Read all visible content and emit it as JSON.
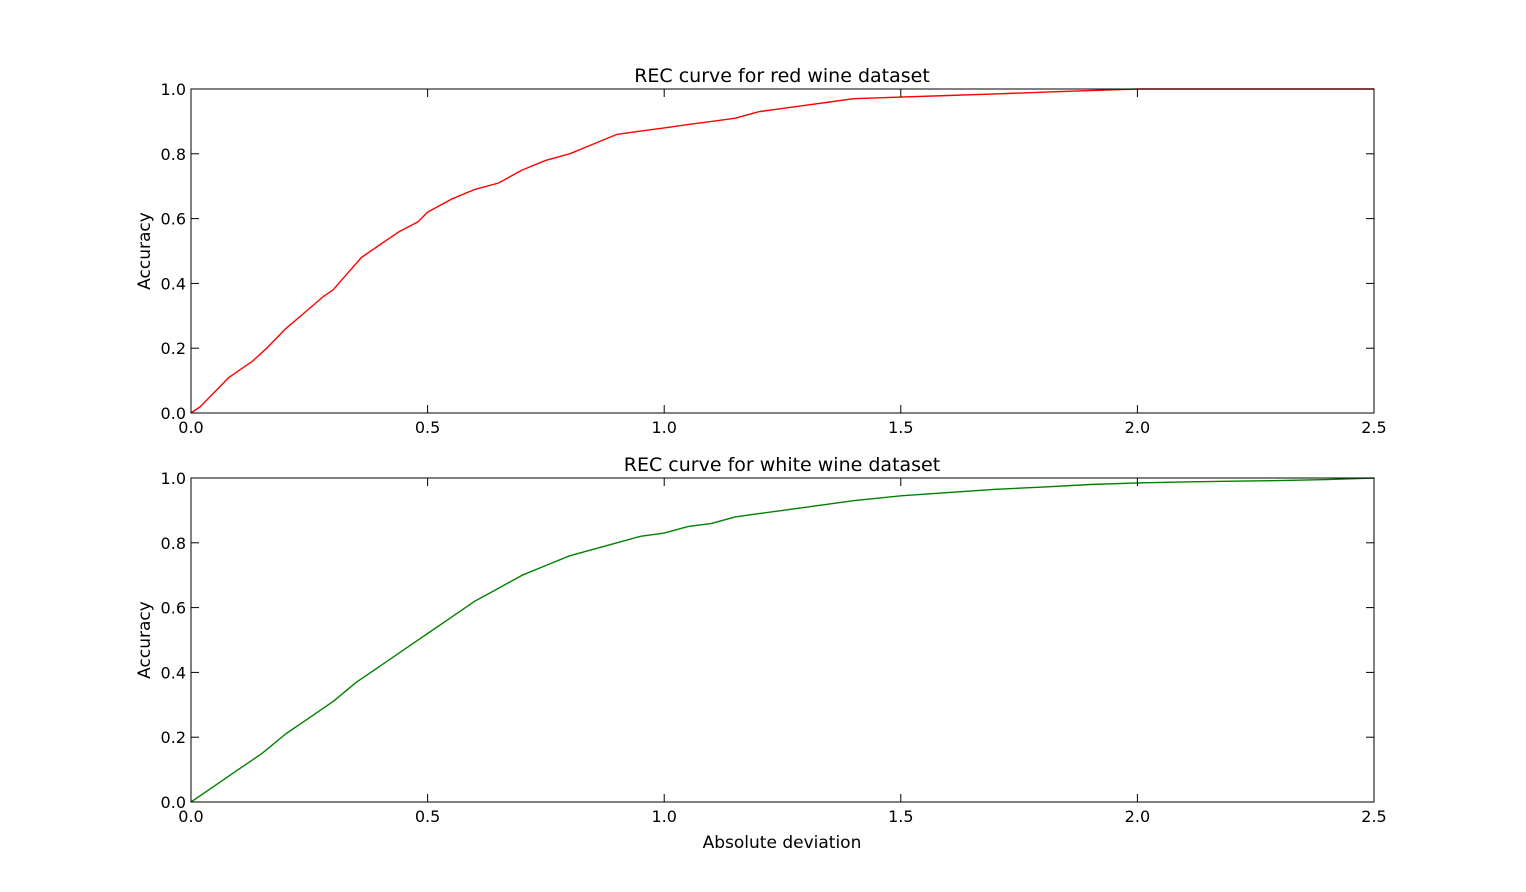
{
  "chart_data": [
    {
      "type": "line",
      "title": "REC curve for red wine dataset",
      "xlabel": "",
      "ylabel": "Accuracy",
      "xlim": [
        0.0,
        2.5
      ],
      "ylim": [
        0.0,
        1.0
      ],
      "xticks": [
        "0.0",
        "0.5",
        "1.0",
        "1.5",
        "2.0",
        "2.5"
      ],
      "yticks": [
        "0.0",
        "0.2",
        "0.4",
        "0.6",
        "0.8",
        "1.0"
      ],
      "grid": false,
      "series": [
        {
          "color": "#ff0000",
          "x": [
            0.0,
            0.02,
            0.04,
            0.06,
            0.08,
            0.1,
            0.13,
            0.16,
            0.2,
            0.24,
            0.28,
            0.3,
            0.33,
            0.36,
            0.4,
            0.44,
            0.48,
            0.5,
            0.55,
            0.6,
            0.65,
            0.7,
            0.75,
            0.8,
            0.85,
            0.9,
            0.95,
            1.0,
            1.05,
            1.1,
            1.15,
            1.2,
            1.25,
            1.3,
            1.35,
            1.4,
            1.5,
            1.6,
            1.7,
            1.8,
            1.9,
            2.0,
            2.1,
            2.2,
            2.5
          ],
          "y": [
            0.0,
            0.02,
            0.05,
            0.08,
            0.11,
            0.13,
            0.16,
            0.2,
            0.26,
            0.31,
            0.36,
            0.38,
            0.43,
            0.48,
            0.52,
            0.56,
            0.59,
            0.62,
            0.66,
            0.69,
            0.71,
            0.75,
            0.78,
            0.8,
            0.83,
            0.86,
            0.87,
            0.88,
            0.89,
            0.9,
            0.91,
            0.93,
            0.94,
            0.95,
            0.96,
            0.97,
            0.975,
            0.98,
            0.985,
            0.99,
            0.995,
            1.0,
            1.0,
            1.0,
            1.0
          ]
        }
      ]
    },
    {
      "type": "line",
      "title": "REC curve for white wine dataset",
      "xlabel": "Absolute deviation",
      "ylabel": "Accuracy",
      "xlim": [
        0.0,
        2.5
      ],
      "ylim": [
        0.0,
        1.0
      ],
      "xticks": [
        "0.0",
        "0.5",
        "1.0",
        "1.5",
        "2.0",
        "2.5"
      ],
      "yticks": [
        "0.0",
        "0.2",
        "0.4",
        "0.6",
        "0.8",
        "1.0"
      ],
      "grid": false,
      "series": [
        {
          "color": "#008000",
          "x": [
            0.0,
            0.03,
            0.06,
            0.1,
            0.15,
            0.2,
            0.25,
            0.3,
            0.35,
            0.4,
            0.45,
            0.5,
            0.55,
            0.6,
            0.65,
            0.7,
            0.75,
            0.8,
            0.85,
            0.9,
            0.95,
            1.0,
            1.05,
            1.1,
            1.15,
            1.2,
            1.25,
            1.3,
            1.35,
            1.4,
            1.5,
            1.6,
            1.7,
            1.8,
            1.9,
            2.0,
            2.1,
            2.2,
            2.3,
            2.4,
            2.5
          ],
          "y": [
            0.0,
            0.03,
            0.06,
            0.1,
            0.15,
            0.21,
            0.26,
            0.31,
            0.37,
            0.42,
            0.47,
            0.52,
            0.57,
            0.62,
            0.66,
            0.7,
            0.73,
            0.76,
            0.78,
            0.8,
            0.82,
            0.83,
            0.85,
            0.86,
            0.88,
            0.89,
            0.9,
            0.91,
            0.92,
            0.93,
            0.945,
            0.955,
            0.965,
            0.972,
            0.98,
            0.985,
            0.988,
            0.99,
            0.992,
            0.995,
            1.0
          ]
        }
      ]
    }
  ]
}
